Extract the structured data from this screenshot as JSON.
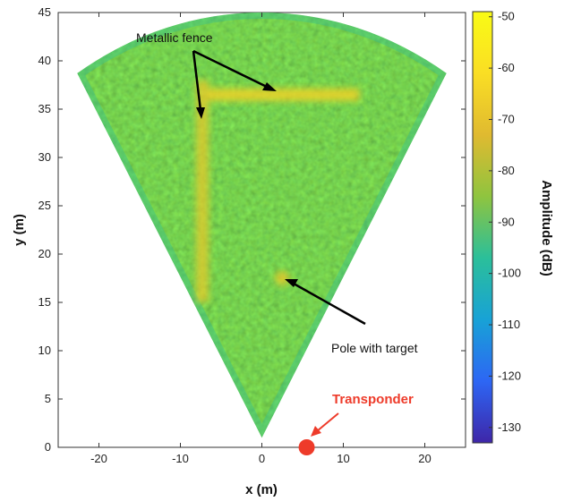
{
  "chart_data": {
    "type": "heatmap",
    "title": "",
    "xlabel": "x (m)",
    "ylabel": "y (m)",
    "xlim": [
      -25,
      25
    ],
    "ylim": [
      0,
      45
    ],
    "x_ticks": [
      -20,
      -10,
      0,
      10,
      20
    ],
    "y_ticks": [
      0,
      5,
      10,
      15,
      20,
      25,
      30,
      35,
      40,
      45
    ],
    "colorbar": {
      "label": "Amplitude (dB)",
      "range": [
        -133,
        -49
      ],
      "ticks": [
        -50,
        -60,
        -70,
        -80,
        -90,
        -100,
        -110,
        -120,
        -130
      ],
      "colormap": [
        "#3e26a8",
        "#2d66f4",
        "#18a2d6",
        "#2bbf9a",
        "#8fc43f",
        "#e0ba30",
        "#fade24",
        "#f9fb15"
      ]
    },
    "sector": {
      "apex": [
        0,
        1
      ],
      "radius_m": 44,
      "half_angle_deg": 31,
      "background_level_db": -88
    },
    "features": [
      {
        "name": "metallic-fence-horizontal",
        "x_range": [
          -7,
          12
        ],
        "y": 36.5,
        "level_db": -65
      },
      {
        "name": "metallic-fence-vertical",
        "x": -7.3,
        "y_range": [
          15,
          38
        ],
        "level_db": -68
      },
      {
        "name": "pole-target",
        "x": 2.5,
        "y": 17.5,
        "level_db": -68
      }
    ],
    "annotations": [
      {
        "text": "Metallic fence",
        "color": "#111111"
      },
      {
        "text": "Pole with target",
        "color": "#111111"
      },
      {
        "text": "Transponder",
        "color": "#ee3b2a"
      }
    ],
    "transponder": {
      "x": 5.5,
      "y": 0,
      "color": "#ee3b2a"
    }
  }
}
